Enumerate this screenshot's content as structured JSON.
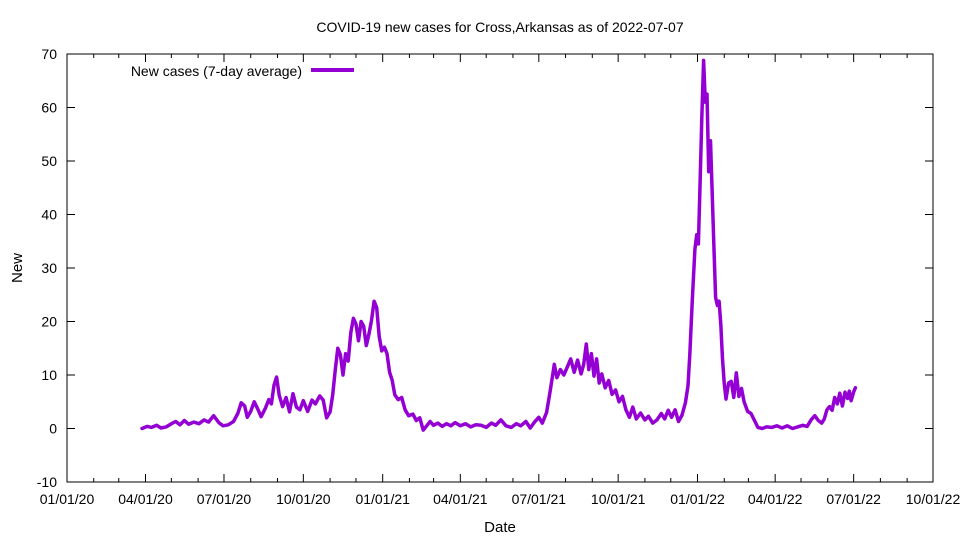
{
  "chart_data": {
    "type": "line",
    "title": "COVID-19 new cases for Cross,Arkansas as of 2022-07-07",
    "xlabel": "Date",
    "ylabel": "New",
    "xlim": [
      "2020-01-01",
      "2022-10-01"
    ],
    "ylim": [
      -10,
      70
    ],
    "x_ticks": [
      {
        "date": "2020-01-01",
        "label": "01/01/20"
      },
      {
        "date": "2020-04-01",
        "label": "04/01/20"
      },
      {
        "date": "2020-07-01",
        "label": "07/01/20"
      },
      {
        "date": "2020-10-01",
        "label": "10/01/20"
      },
      {
        "date": "2021-01-01",
        "label": "01/01/21"
      },
      {
        "date": "2021-04-01",
        "label": "04/01/21"
      },
      {
        "date": "2021-07-01",
        "label": "07/01/21"
      },
      {
        "date": "2021-10-01",
        "label": "10/01/21"
      },
      {
        "date": "2022-01-01",
        "label": "01/01/22"
      },
      {
        "date": "2022-04-01",
        "label": "04/01/22"
      },
      {
        "date": "2022-07-01",
        "label": "07/01/22"
      },
      {
        "date": "2022-10-01",
        "label": "10/01/22"
      }
    ],
    "y_ticks": [
      -10,
      0,
      10,
      20,
      30,
      40,
      50,
      60,
      70
    ],
    "grid": false,
    "legend": "top-left",
    "series": [
      {
        "name": "New cases (7-day average)",
        "color": "#9400d3",
        "points": [
          [
            "2020-03-28",
            0.0
          ],
          [
            "2020-04-03",
            0.4
          ],
          [
            "2020-04-08",
            0.2
          ],
          [
            "2020-04-14",
            0.6
          ],
          [
            "2020-04-19",
            0.1
          ],
          [
            "2020-04-25",
            0.3
          ],
          [
            "2020-05-01",
            0.9
          ],
          [
            "2020-05-06",
            1.3
          ],
          [
            "2020-05-11",
            0.7
          ],
          [
            "2020-05-16",
            1.5
          ],
          [
            "2020-05-21",
            0.8
          ],
          [
            "2020-05-27",
            1.2
          ],
          [
            "2020-06-02",
            0.9
          ],
          [
            "2020-06-08",
            1.6
          ],
          [
            "2020-06-13",
            1.2
          ],
          [
            "2020-06-19",
            2.4
          ],
          [
            "2020-06-25",
            1.1
          ],
          [
            "2020-06-30",
            0.5
          ],
          [
            "2020-07-06",
            0.7
          ],
          [
            "2020-07-12",
            1.3
          ],
          [
            "2020-07-17",
            2.8
          ],
          [
            "2020-07-21",
            4.8
          ],
          [
            "2020-07-25",
            4.2
          ],
          [
            "2020-07-28",
            2.1
          ],
          [
            "2020-08-01",
            3.2
          ],
          [
            "2020-08-05",
            5.0
          ],
          [
            "2020-08-09",
            3.7
          ],
          [
            "2020-08-13",
            2.2
          ],
          [
            "2020-08-18",
            3.8
          ],
          [
            "2020-08-22",
            5.4
          ],
          [
            "2020-08-25",
            4.6
          ],
          [
            "2020-08-28",
            8.1
          ],
          [
            "2020-08-31",
            9.6
          ],
          [
            "2020-09-03",
            6.2
          ],
          [
            "2020-09-07",
            4.1
          ],
          [
            "2020-09-11",
            5.8
          ],
          [
            "2020-09-15",
            3.1
          ],
          [
            "2020-09-19",
            6.5
          ],
          [
            "2020-09-23",
            4.0
          ],
          [
            "2020-09-27",
            3.5
          ],
          [
            "2020-10-01",
            5.2
          ],
          [
            "2020-10-06",
            3.2
          ],
          [
            "2020-10-11",
            5.3
          ],
          [
            "2020-10-15",
            4.6
          ],
          [
            "2020-10-20",
            6.1
          ],
          [
            "2020-10-24",
            5.3
          ],
          [
            "2020-10-28",
            2.0
          ],
          [
            "2020-11-01",
            3.1
          ],
          [
            "2020-11-04",
            6.3
          ],
          [
            "2020-11-07",
            11.0
          ],
          [
            "2020-11-10",
            15.0
          ],
          [
            "2020-11-13",
            13.8
          ],
          [
            "2020-11-16",
            10.0
          ],
          [
            "2020-11-19",
            14.0
          ],
          [
            "2020-11-22",
            12.6
          ],
          [
            "2020-11-25",
            17.9
          ],
          [
            "2020-11-28",
            20.6
          ],
          [
            "2020-12-01",
            19.5
          ],
          [
            "2020-12-04",
            16.4
          ],
          [
            "2020-12-07",
            20.0
          ],
          [
            "2020-12-10",
            19.1
          ],
          [
            "2020-12-13",
            15.5
          ],
          [
            "2020-12-16",
            17.6
          ],
          [
            "2020-12-19",
            20.2
          ],
          [
            "2020-12-22",
            23.8
          ],
          [
            "2020-12-25",
            22.6
          ],
          [
            "2020-12-28",
            17.2
          ],
          [
            "2020-12-31",
            14.5
          ],
          [
            "2021-01-03",
            15.2
          ],
          [
            "2021-01-06",
            14.0
          ],
          [
            "2021-01-09",
            10.5
          ],
          [
            "2021-01-12",
            9.0
          ],
          [
            "2021-01-15",
            6.3
          ],
          [
            "2021-01-19",
            5.4
          ],
          [
            "2021-01-23",
            5.8
          ],
          [
            "2021-01-27",
            3.5
          ],
          [
            "2021-01-31",
            2.4
          ],
          [
            "2021-02-05",
            2.7
          ],
          [
            "2021-02-09",
            1.5
          ],
          [
            "2021-02-13",
            2.0
          ],
          [
            "2021-02-17",
            -0.3
          ],
          [
            "2021-02-21",
            0.5
          ],
          [
            "2021-02-25",
            1.3
          ],
          [
            "2021-03-01",
            0.6
          ],
          [
            "2021-03-06",
            1.0
          ],
          [
            "2021-03-11",
            0.4
          ],
          [
            "2021-03-16",
            0.9
          ],
          [
            "2021-03-21",
            0.5
          ],
          [
            "2021-03-26",
            1.1
          ],
          [
            "2021-04-01",
            0.5
          ],
          [
            "2021-04-07",
            0.9
          ],
          [
            "2021-04-13",
            0.3
          ],
          [
            "2021-04-19",
            0.7
          ],
          [
            "2021-04-25",
            0.6
          ],
          [
            "2021-05-01",
            0.2
          ],
          [
            "2021-05-07",
            1.0
          ],
          [
            "2021-05-12",
            0.6
          ],
          [
            "2021-05-18",
            1.6
          ],
          [
            "2021-05-24",
            0.5
          ],
          [
            "2021-05-30",
            0.2
          ],
          [
            "2021-06-05",
            0.9
          ],
          [
            "2021-06-10",
            0.5
          ],
          [
            "2021-06-16",
            1.3
          ],
          [
            "2021-06-21",
            0.1
          ],
          [
            "2021-06-26",
            1.2
          ],
          [
            "2021-07-01",
            2.1
          ],
          [
            "2021-07-05",
            1.0
          ],
          [
            "2021-07-10",
            3.0
          ],
          [
            "2021-07-14",
            6.8
          ],
          [
            "2021-07-17",
            9.9
          ],
          [
            "2021-07-19",
            12.0
          ],
          [
            "2021-07-22",
            9.5
          ],
          [
            "2021-07-26",
            11.0
          ],
          [
            "2021-07-30",
            10.0
          ],
          [
            "2021-08-03",
            11.5
          ],
          [
            "2021-08-07",
            13.0
          ],
          [
            "2021-08-11",
            10.5
          ],
          [
            "2021-08-15",
            12.8
          ],
          [
            "2021-08-19",
            10.2
          ],
          [
            "2021-08-22",
            12.0
          ],
          [
            "2021-08-25",
            15.8
          ],
          [
            "2021-08-28",
            11.0
          ],
          [
            "2021-08-31",
            14.0
          ],
          [
            "2021-09-03",
            9.8
          ],
          [
            "2021-09-06",
            13.0
          ],
          [
            "2021-09-09",
            8.5
          ],
          [
            "2021-09-12",
            10.2
          ],
          [
            "2021-09-16",
            7.6
          ],
          [
            "2021-09-20",
            9.0
          ],
          [
            "2021-09-24",
            6.4
          ],
          [
            "2021-09-28",
            7.2
          ],
          [
            "2021-10-02",
            5.0
          ],
          [
            "2021-10-06",
            6.0
          ],
          [
            "2021-10-10",
            3.5
          ],
          [
            "2021-10-14",
            2.1
          ],
          [
            "2021-10-18",
            4.0
          ],
          [
            "2021-10-22",
            1.8
          ],
          [
            "2021-10-27",
            2.9
          ],
          [
            "2021-11-01",
            1.6
          ],
          [
            "2021-11-05",
            2.3
          ],
          [
            "2021-11-10",
            1.0
          ],
          [
            "2021-11-15",
            1.6
          ],
          [
            "2021-11-20",
            2.8
          ],
          [
            "2021-11-24",
            1.8
          ],
          [
            "2021-11-28",
            3.4
          ],
          [
            "2021-12-02",
            2.1
          ],
          [
            "2021-12-06",
            3.5
          ],
          [
            "2021-12-10",
            1.3
          ],
          [
            "2021-12-14",
            2.5
          ],
          [
            "2021-12-18",
            4.8
          ],
          [
            "2021-12-21",
            8.0
          ],
          [
            "2021-12-23",
            13.8
          ],
          [
            "2021-12-26",
            24.0
          ],
          [
            "2021-12-29",
            33.5
          ],
          [
            "2021-12-31",
            36.2
          ],
          [
            "2022-01-02",
            34.5
          ],
          [
            "2022-01-04",
            46.0
          ],
          [
            "2022-01-06",
            58.0
          ],
          [
            "2022-01-08",
            68.8
          ],
          [
            "2022-01-10",
            61.0
          ],
          [
            "2022-01-12",
            62.5
          ],
          [
            "2022-01-14",
            48.0
          ],
          [
            "2022-01-16",
            53.8
          ],
          [
            "2022-01-18",
            44.0
          ],
          [
            "2022-01-20",
            34.0
          ],
          [
            "2022-01-22",
            24.5
          ],
          [
            "2022-01-24",
            23.0
          ],
          [
            "2022-01-26",
            23.8
          ],
          [
            "2022-01-28",
            19.5
          ],
          [
            "2022-01-30",
            13.0
          ],
          [
            "2022-02-01",
            8.3
          ],
          [
            "2022-02-03",
            5.5
          ],
          [
            "2022-02-06",
            8.5
          ],
          [
            "2022-02-09",
            8.8
          ],
          [
            "2022-02-12",
            5.8
          ],
          [
            "2022-02-15",
            10.4
          ],
          [
            "2022-02-18",
            6.0
          ],
          [
            "2022-02-21",
            7.5
          ],
          [
            "2022-02-24",
            5.0
          ],
          [
            "2022-02-28",
            3.2
          ],
          [
            "2022-03-04",
            2.8
          ],
          [
            "2022-03-08",
            1.5
          ],
          [
            "2022-03-12",
            0.2
          ],
          [
            "2022-03-17",
            0.0
          ],
          [
            "2022-03-22",
            0.3
          ],
          [
            "2022-03-28",
            0.2
          ],
          [
            "2022-04-03",
            0.5
          ],
          [
            "2022-04-09",
            0.1
          ],
          [
            "2022-04-15",
            0.5
          ],
          [
            "2022-04-21",
            0.0
          ],
          [
            "2022-04-27",
            0.3
          ],
          [
            "2022-05-03",
            0.6
          ],
          [
            "2022-05-08",
            0.4
          ],
          [
            "2022-05-13",
            1.7
          ],
          [
            "2022-05-17",
            2.4
          ],
          [
            "2022-05-21",
            1.5
          ],
          [
            "2022-05-25",
            1.0
          ],
          [
            "2022-05-28",
            1.8
          ],
          [
            "2022-05-31",
            3.5
          ],
          [
            "2022-06-03",
            4.1
          ],
          [
            "2022-06-06",
            3.4
          ],
          [
            "2022-06-09",
            5.8
          ],
          [
            "2022-06-12",
            4.6
          ],
          [
            "2022-06-15",
            6.6
          ],
          [
            "2022-06-18",
            4.2
          ],
          [
            "2022-06-21",
            6.8
          ],
          [
            "2022-06-24",
            5.6
          ],
          [
            "2022-06-26",
            7.0
          ],
          [
            "2022-06-28",
            5.2
          ],
          [
            "2022-07-01",
            6.8
          ],
          [
            "2022-07-03",
            7.6
          ]
        ]
      }
    ]
  }
}
